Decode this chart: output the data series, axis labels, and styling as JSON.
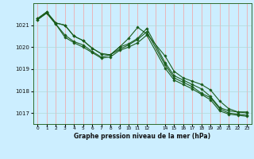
{
  "xlabel": "Graphe pression niveau de la mer (hPa)",
  "bg_color": "#cceeff",
  "grid_color_v": "#f5a0a0",
  "grid_color_h": "#b0d8d8",
  "line_color": "#1a5c1a",
  "marker": "D",
  "markersize": 1.8,
  "linewidth": 0.8,
  "ylim": [
    1016.5,
    1022.0
  ],
  "xlim": [
    -0.5,
    23.5
  ],
  "yticks": [
    1017,
    1018,
    1019,
    1020,
    1021
  ],
  "xtick_labels": [
    "0",
    "1",
    "2",
    "3",
    "4",
    "5",
    "6",
    "7",
    "8",
    "9",
    "10",
    "11",
    "12",
    "14",
    "15",
    "16",
    "17",
    "18",
    "19",
    "20",
    "21",
    "22",
    "23"
  ],
  "xtick_positions": [
    0,
    1,
    2,
    3,
    4,
    5,
    6,
    7,
    8,
    9,
    10,
    11,
    12,
    14,
    15,
    16,
    17,
    18,
    19,
    20,
    21,
    22,
    23
  ],
  "all_hours": [
    0,
    1,
    2,
    3,
    4,
    5,
    6,
    7,
    8,
    9,
    10,
    11,
    12,
    14,
    15,
    16,
    17,
    18,
    19,
    20,
    21,
    22,
    23
  ],
  "series": [
    [
      1021.3,
      1021.6,
      1021.1,
      1021.0,
      1020.5,
      1020.3,
      1019.95,
      1019.7,
      1019.65,
      1020.0,
      1020.4,
      1020.9,
      1020.6,
      1019.6,
      1018.9,
      1018.6,
      1018.45,
      1018.3,
      1018.05,
      1017.55,
      1017.2,
      1017.05,
      1017.05
    ],
    [
      1021.3,
      1021.6,
      1021.1,
      1021.0,
      1020.5,
      1020.3,
      1019.95,
      1019.7,
      1019.65,
      1020.0,
      1020.15,
      1020.4,
      1020.85,
      1019.3,
      1018.7,
      1018.5,
      1018.3,
      1018.1,
      1017.75,
      1017.25,
      1017.1,
      1017.05,
      1017.0
    ],
    [
      1021.25,
      1021.55,
      1021.05,
      1020.55,
      1020.25,
      1020.1,
      1019.8,
      1019.55,
      1019.65,
      1019.9,
      1020.1,
      1020.35,
      1020.7,
      1019.2,
      1018.6,
      1018.4,
      1018.2,
      1017.9,
      1017.7,
      1017.2,
      1017.0,
      1016.95,
      1016.9
    ],
    [
      1021.25,
      1021.55,
      1021.05,
      1020.45,
      1020.2,
      1020.0,
      1019.75,
      1019.5,
      1019.55,
      1019.85,
      1020.0,
      1020.2,
      1020.55,
      1019.05,
      1018.5,
      1018.3,
      1018.1,
      1017.85,
      1017.6,
      1017.1,
      1016.95,
      1016.9,
      1016.85
    ]
  ]
}
